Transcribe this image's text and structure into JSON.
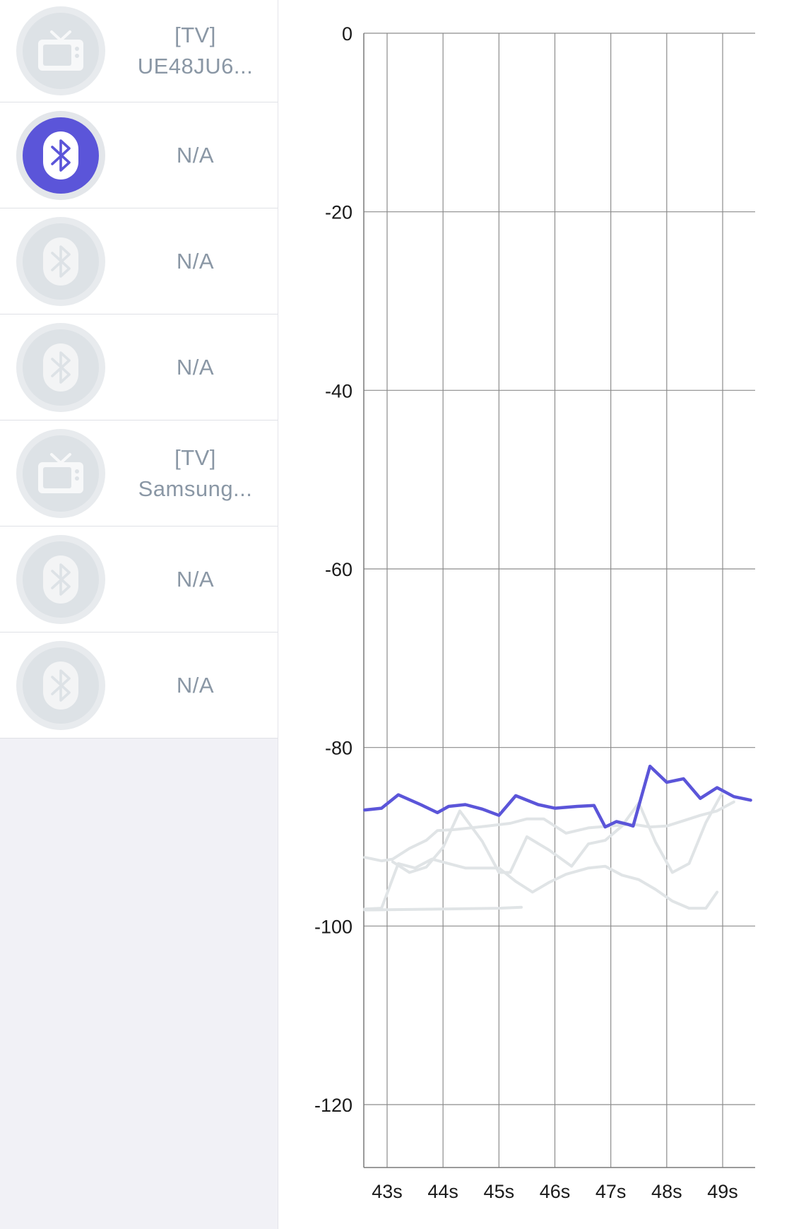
{
  "devices": [
    {
      "line1": "[TV]",
      "line2": "UE48JU6...",
      "icon": "tv-icon",
      "active": false
    },
    {
      "line1": "N/A",
      "line2": "",
      "icon": "bluetooth-icon",
      "active": true
    },
    {
      "line1": "N/A",
      "line2": "",
      "icon": "bluetooth-icon",
      "active": false
    },
    {
      "line1": "N/A",
      "line2": "",
      "icon": "bluetooth-icon",
      "active": false
    },
    {
      "line1": "[TV]",
      "line2": "Samsung...",
      "icon": "tv-icon",
      "active": false
    },
    {
      "line1": "N/A",
      "line2": "",
      "icon": "bluetooth-icon",
      "active": false
    },
    {
      "line1": "N/A",
      "line2": "",
      "icon": "bluetooth-icon",
      "active": false
    }
  ],
  "colors": {
    "accent": "#5b55d9",
    "inactive_series": "#e0e4e6",
    "grid": "#8c8c8c",
    "label_text": "#8a97a5",
    "sidebar_bg": "#f1f1f6"
  },
  "chart_data": {
    "type": "line",
    "title": "",
    "xlabel": "",
    "ylabel": "",
    "ylim": [
      -127,
      0
    ],
    "y_ticks": [
      0,
      -20,
      -40,
      -60,
      -80,
      -100,
      -120
    ],
    "y_tick_labels": [
      "0",
      "-20",
      "-40",
      "-60",
      "-80",
      "-100",
      "-120"
    ],
    "xlim": [
      42.6,
      49.6
    ],
    "x_ticks": [
      43,
      44,
      45,
      46,
      47,
      48,
      49
    ],
    "x_tick_labels": [
      "43s",
      "44s",
      "45s",
      "46s",
      "47s",
      "48s",
      "49s"
    ],
    "grid": true,
    "legend": "none",
    "series": [
      {
        "highlighted": true,
        "x": [
          42.6,
          42.9,
          43.2,
          43.6,
          43.9,
          44.1,
          44.4,
          44.7,
          45.0,
          45.3,
          45.7,
          46.0,
          46.4,
          46.7,
          46.9,
          47.1,
          47.3,
          47.4,
          47.7,
          48.0,
          48.3,
          48.6,
          48.9,
          49.2,
          49.5
        ],
        "y": [
          -87,
          -86.8,
          -85.3,
          -86.4,
          -87.3,
          -86.6,
          -86.4,
          -86.9,
          -87.6,
          -85.4,
          -86.4,
          -86.8,
          -86.6,
          -86.5,
          -88.9,
          -88.3,
          -88.6,
          -88.8,
          -82.1,
          -83.9,
          -83.5,
          -85.7,
          -84.5,
          -85.5,
          -85.9
        ]
      },
      {
        "highlighted": false,
        "x": [
          42.6,
          42.9,
          43.1,
          43.4,
          43.7,
          43.9,
          44.2,
          44.5,
          44.8,
          45.2,
          45.5,
          45.8,
          46.2,
          46.6,
          47.0,
          47.4,
          47.7,
          48.0,
          48.3,
          48.6,
          48.9,
          49.2
        ],
        "y": [
          -92.3,
          -92.7,
          -92.5,
          -91.3,
          -90.4,
          -89.3,
          -89.2,
          -89.0,
          -88.8,
          -88.5,
          -88.0,
          -88.0,
          -89.6,
          -89.0,
          -88.8,
          -88.6,
          -88.9,
          -88.8,
          -88.2,
          -87.6,
          -87.1,
          -86.1
        ]
      },
      {
        "highlighted": false,
        "x": [
          43.1,
          43.4,
          43.7,
          44.0,
          44.3,
          44.7,
          45.0,
          45.2,
          45.5,
          45.9,
          46.3,
          46.6,
          46.9,
          47.2,
          47.5,
          47.8,
          48.1,
          48.4,
          48.7,
          49.0
        ],
        "y": [
          -92.8,
          -94.0,
          -93.4,
          -91.2,
          -87.1,
          -90.5,
          -94.0,
          -94.0,
          -90.0,
          -91.5,
          -93.3,
          -90.8,
          -90.4,
          -88.8,
          -86.2,
          -90.6,
          -94.0,
          -93.0,
          -88.4,
          -85.0
        ]
      },
      {
        "highlighted": false,
        "x": [
          42.6,
          42.9,
          43.2,
          43.5,
          43.8,
          44.1,
          44.4,
          44.7,
          45.0,
          45.3,
          45.6,
          45.9,
          46.2,
          46.6,
          46.9,
          47.2,
          47.5,
          47.8,
          48.1,
          48.4,
          48.7,
          48.9
        ],
        "y": [
          -98.1,
          -98.0,
          -93.0,
          -93.5,
          -92.5,
          -93.0,
          -93.5,
          -93.5,
          -93.5,
          -95.0,
          -96.2,
          -95.1,
          -94.2,
          -93.5,
          -93.3,
          -94.3,
          -94.8,
          -95.9,
          -97.2,
          -98.0,
          -98.0,
          -96.2
        ]
      },
      {
        "highlighted": false,
        "x": [
          42.6,
          44.0,
          45.0,
          45.4
        ],
        "y": [
          -98.2,
          -98.1,
          -98.0,
          -97.9
        ]
      }
    ]
  }
}
